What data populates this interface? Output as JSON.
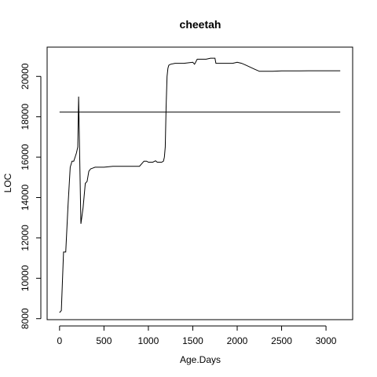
{
  "chart_data": {
    "type": "line",
    "title": "cheetah",
    "xlabel": "Age.Days",
    "ylabel": "LOC",
    "xlim": [
      -140,
      3300
    ],
    "ylim": [
      7950,
      21450
    ],
    "x_ticks": [
      0,
      500,
      1000,
      1500,
      2000,
      2500,
      3000
    ],
    "y_ticks": [
      8000,
      10000,
      12000,
      14000,
      16000,
      18000,
      20000
    ],
    "grid": false,
    "legend": "none",
    "line_color": "#000000",
    "reference_line": {
      "y": 18230,
      "x_start": 0,
      "x_end": 3160
    },
    "series": [
      {
        "x": [
          0,
          20,
          45,
          70,
          95,
          120,
          140,
          160,
          175,
          190,
          205,
          215,
          240,
          265,
          290,
          310,
          330,
          350,
          370,
          400,
          500,
          600,
          700,
          800,
          900,
          950,
          980,
          1000,
          1050,
          1080,
          1100,
          1150,
          1170,
          1180,
          1190,
          1200,
          1210,
          1220,
          1230,
          1250,
          1300,
          1350,
          1400,
          1500,
          1520,
          1550,
          1600,
          1650,
          1700,
          1750,
          1760,
          1800,
          1850,
          1900,
          1950,
          2000,
          2050,
          2100,
          2200,
          2250,
          2300,
          2400,
          2500,
          2600,
          2700,
          2800,
          2900,
          3000,
          3100,
          3160
        ],
        "y": [
          8300,
          8400,
          11300,
          11300,
          13600,
          15500,
          15800,
          15800,
          16000,
          16200,
          16500,
          19000,
          12700,
          13500,
          14700,
          14800,
          15300,
          15420,
          15450,
          15500,
          15500,
          15550,
          15550,
          15550,
          15550,
          15800,
          15800,
          15750,
          15750,
          15820,
          15750,
          15750,
          15800,
          16000,
          16500,
          18500,
          20000,
          20400,
          20550,
          20600,
          20650,
          20650,
          20650,
          20700,
          20600,
          20850,
          20850,
          20850,
          20900,
          20900,
          20650,
          20650,
          20650,
          20650,
          20650,
          20700,
          20650,
          20550,
          20350,
          20250,
          20250,
          20250,
          20270,
          20270,
          20270,
          20280,
          20280,
          20280,
          20280,
          20280
        ]
      }
    ]
  }
}
